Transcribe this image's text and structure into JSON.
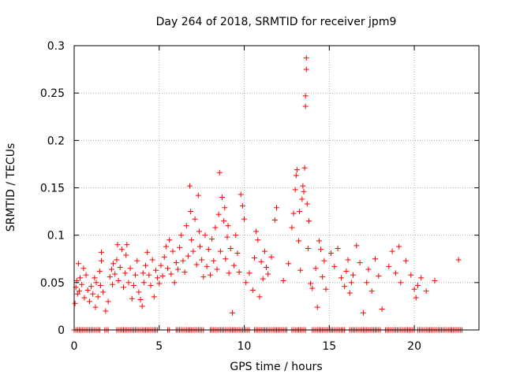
{
  "chart_data": {
    "type": "scatter",
    "title": "Day 264 of 2018, SRMTID for receiver jpm9",
    "xlabel": "GPS time / hours",
    "ylabel": "SRMTID / TECUs",
    "xlim": [
      0,
      23.8
    ],
    "ylim": [
      0,
      0.3
    ],
    "x_ticks": [
      0,
      5,
      10,
      15,
      20
    ],
    "y_ticks": [
      0,
      0.05,
      0.1,
      0.15,
      0.2,
      0.25,
      0.3
    ],
    "x_tick_labels": [
      "0",
      "5",
      "10",
      "15",
      "20"
    ],
    "y_tick_labels": [
      "0",
      "0.05",
      "0.1",
      "0.15",
      "0.2",
      "0.25",
      "0.3"
    ],
    "grid": true,
    "marker": "+",
    "series": [
      {
        "name": "SRMTID",
        "color": "#ff0000",
        "points": [
          [
            0.05,
            0.028
          ],
          [
            0.1,
            0.045
          ],
          [
            0.15,
            0.052
          ],
          [
            0.2,
            0.038
          ],
          [
            0.25,
            0.07
          ],
          [
            0.3,
            0.041
          ],
          [
            0.35,
            0.055
          ],
          [
            0.45,
            0.048
          ],
          [
            0.55,
            0.065
          ],
          [
            0.6,
            0.034
          ],
          [
            0.7,
            0.058
          ],
          [
            0.8,
            0.042
          ],
          [
            0.9,
            0.03
          ],
          [
            1.0,
            0.046
          ],
          [
            1.1,
            0.038
          ],
          [
            1.2,
            0.055
          ],
          [
            1.25,
            0.024
          ],
          [
            1.3,
            0.05
          ],
          [
            1.4,
            0.035
          ],
          [
            1.5,
            0.062
          ],
          [
            1.55,
            0.047
          ],
          [
            1.6,
            0.073
          ],
          [
            1.6,
            0.082
          ],
          [
            1.7,
            0.04
          ],
          [
            1.85,
            0.02
          ],
          [
            2.0,
            0.03
          ],
          [
            2.1,
            0.056
          ],
          [
            2.2,
            0.064
          ],
          [
            2.25,
            0.048
          ],
          [
            2.3,
            0.07
          ],
          [
            2.4,
            0.059
          ],
          [
            2.5,
            0.074
          ],
          [
            2.55,
            0.09
          ],
          [
            2.6,
            0.052
          ],
          [
            2.7,
            0.066
          ],
          [
            2.8,
            0.085
          ],
          [
            2.9,
            0.045
          ],
          [
            3.0,
            0.06
          ],
          [
            3.05,
            0.079
          ],
          [
            3.1,
            0.09
          ],
          [
            3.2,
            0.05
          ],
          [
            3.3,
            0.065
          ],
          [
            3.4,
            0.033
          ],
          [
            3.5,
            0.047
          ],
          [
            3.6,
            0.058
          ],
          [
            3.7,
            0.073
          ],
          [
            3.8,
            0.04
          ],
          [
            3.9,
            0.032
          ],
          [
            4.0,
            0.025
          ],
          [
            4.05,
            0.06
          ],
          [
            4.1,
            0.05
          ],
          [
            4.2,
            0.068
          ],
          [
            4.3,
            0.082
          ],
          [
            4.4,
            0.058
          ],
          [
            4.5,
            0.047
          ],
          [
            4.6,
            0.074
          ],
          [
            4.7,
            0.035
          ],
          [
            4.8,
            0.063
          ],
          [
            4.9,
            0.055
          ],
          [
            5.0,
            0.049
          ],
          [
            5.1,
            0.068
          ],
          [
            5.2,
            0.057
          ],
          [
            5.3,
            0.077
          ],
          [
            5.4,
            0.088
          ],
          [
            5.5,
            0.065
          ],
          [
            5.6,
            0.095
          ],
          [
            5.7,
            0.059
          ],
          [
            5.8,
            0.083
          ],
          [
            5.9,
            0.05
          ],
          [
            6.0,
            0.071
          ],
          [
            6.1,
            0.064
          ],
          [
            6.2,
            0.087
          ],
          [
            6.3,
            0.1
          ],
          [
            6.4,
            0.073
          ],
          [
            6.5,
            0.061
          ],
          [
            6.6,
            0.11
          ],
          [
            6.7,
            0.078
          ],
          [
            6.8,
            0.152
          ],
          [
            6.85,
            0.125
          ],
          [
            6.9,
            0.095
          ],
          [
            7.0,
            0.083
          ],
          [
            7.1,
            0.117
          ],
          [
            7.2,
            0.069
          ],
          [
            7.3,
            0.142
          ],
          [
            7.35,
            0.104
          ],
          [
            7.4,
            0.088
          ],
          [
            7.5,
            0.074
          ],
          [
            7.6,
            0.056
          ],
          [
            7.7,
            0.1
          ],
          [
            7.8,
            0.067
          ],
          [
            7.9,
            0.085
          ],
          [
            8.0,
            0.058
          ],
          [
            8.1,
            0.096
          ],
          [
            8.2,
            0.073
          ],
          [
            8.3,
            0.108
          ],
          [
            8.4,
            0.064
          ],
          [
            8.5,
            0.122
          ],
          [
            8.55,
            0.166
          ],
          [
            8.6,
            0.083
          ],
          [
            8.7,
            0.14
          ],
          [
            8.8,
            0.115
          ],
          [
            8.85,
            0.129
          ],
          [
            8.9,
            0.075
          ],
          [
            9.0,
            0.098
          ],
          [
            9.05,
            0.11
          ],
          [
            9.1,
            0.06
          ],
          [
            9.2,
            0.086
          ],
          [
            9.3,
            0.018
          ],
          [
            9.4,
            0.068
          ],
          [
            9.5,
            0.1
          ],
          [
            9.6,
            0.081
          ],
          [
            9.7,
            0.061
          ],
          [
            9.8,
            0.143
          ],
          [
            9.9,
            0.131
          ],
          [
            10.0,
            0.117
          ],
          [
            10.1,
            0.05
          ],
          [
            10.3,
            0.06
          ],
          [
            10.5,
            0.042
          ],
          [
            10.6,
            0.076
          ],
          [
            10.7,
            0.104
          ],
          [
            10.8,
            0.095
          ],
          [
            10.9,
            0.035
          ],
          [
            11.0,
            0.072
          ],
          [
            11.1,
            0.054
          ],
          [
            11.2,
            0.083
          ],
          [
            11.3,
            0.066
          ],
          [
            11.4,
            0.059
          ],
          [
            11.6,
            0.077
          ],
          [
            11.8,
            0.116
          ],
          [
            11.9,
            0.129
          ],
          [
            12.3,
            0.052
          ],
          [
            12.6,
            0.07
          ],
          [
            12.8,
            0.108
          ],
          [
            12.9,
            0.123
          ],
          [
            13.0,
            0.148
          ],
          [
            13.05,
            0.163
          ],
          [
            13.1,
            0.169
          ],
          [
            13.2,
            0.094
          ],
          [
            13.25,
            0.125
          ],
          [
            13.3,
            0.063
          ],
          [
            13.4,
            0.138
          ],
          [
            13.45,
            0.152
          ],
          [
            13.5,
            0.146
          ],
          [
            13.55,
            0.171
          ],
          [
            13.6,
            0.247
          ],
          [
            13.6,
            0.236
          ],
          [
            13.65,
            0.275
          ],
          [
            13.65,
            0.287
          ],
          [
            13.7,
            0.133
          ],
          [
            13.75,
            0.086
          ],
          [
            13.8,
            0.115
          ],
          [
            13.9,
            0.049
          ],
          [
            14.0,
            0.044
          ],
          [
            14.2,
            0.065
          ],
          [
            14.3,
            0.024
          ],
          [
            14.4,
            0.094
          ],
          [
            14.5,
            0.085
          ],
          [
            14.6,
            0.056
          ],
          [
            14.7,
            0.073
          ],
          [
            14.8,
            0.043
          ],
          [
            15.1,
            0.081
          ],
          [
            15.3,
            0.067
          ],
          [
            15.5,
            0.086
          ],
          [
            15.7,
            0.055
          ],
          [
            15.9,
            0.046
          ],
          [
            16.0,
            0.062
          ],
          [
            16.1,
            0.074
          ],
          [
            16.2,
            0.039
          ],
          [
            16.3,
            0.05
          ],
          [
            16.4,
            0.058
          ],
          [
            16.6,
            0.089
          ],
          [
            16.8,
            0.071
          ],
          [
            17.0,
            0.018
          ],
          [
            17.2,
            0.05
          ],
          [
            17.3,
            0.064
          ],
          [
            17.5,
            0.041
          ],
          [
            17.7,
            0.075
          ],
          [
            17.9,
            0.057
          ],
          [
            18.1,
            0.022
          ],
          [
            18.5,
            0.067
          ],
          [
            18.7,
            0.083
          ],
          [
            18.9,
            0.06
          ],
          [
            19.1,
            0.088
          ],
          [
            19.2,
            0.05
          ],
          [
            19.5,
            0.073
          ],
          [
            19.8,
            0.058
          ],
          [
            20.0,
            0.043
          ],
          [
            20.1,
            0.034
          ],
          [
            20.2,
            0.047
          ],
          [
            20.4,
            0.055
          ],
          [
            20.7,
            0.041
          ],
          [
            21.2,
            0.052
          ],
          [
            22.6,
            0.074
          ]
        ],
        "zero_points": [
          0.0,
          0.1,
          0.2,
          0.3,
          0.4,
          0.5,
          0.6,
          0.7,
          0.8,
          0.9,
          1.0,
          1.1,
          1.2,
          1.3,
          1.4,
          1.5,
          1.8,
          1.9,
          2.0,
          2.5,
          2.6,
          2.7,
          2.8,
          2.9,
          3.0,
          3.1,
          3.2,
          3.3,
          3.4,
          3.5,
          3.6,
          3.7,
          3.8,
          3.9,
          4.0,
          4.1,
          4.2,
          4.3,
          4.4,
          4.5,
          4.6,
          4.7,
          4.8,
          4.9,
          5.5,
          5.6,
          6.0,
          6.1,
          6.2,
          6.3,
          6.4,
          6.5,
          6.6,
          6.7,
          6.8,
          6.9,
          7.0,
          7.1,
          7.2,
          7.3,
          7.4,
          7.5,
          7.6,
          8.0,
          8.1,
          8.2,
          8.3,
          8.4,
          8.5,
          8.6,
          8.7,
          8.8,
          8.9,
          9.0,
          9.1,
          9.2,
          9.3,
          9.4,
          9.5,
          9.6,
          9.7,
          9.8,
          9.9,
          10.0,
          10.1,
          10.2,
          10.3,
          10.6,
          10.7,
          10.8,
          10.9,
          11.0,
          11.1,
          11.2,
          11.3,
          11.4,
          11.5,
          11.6,
          11.7,
          11.8,
          11.9,
          12.0,
          12.1,
          12.2,
          12.3,
          12.4,
          12.5,
          12.8,
          12.9,
          13.0,
          13.1,
          13.2,
          13.3,
          13.4,
          13.5,
          13.6,
          14.0,
          14.1,
          14.2,
          14.3,
          14.4,
          14.5,
          14.6,
          14.7,
          14.8,
          14.9,
          15.0,
          15.1,
          15.2,
          15.3,
          15.4,
          15.5,
          15.6,
          15.7,
          15.8,
          15.9,
          16.2,
          16.3,
          16.4,
          16.5,
          16.6,
          16.7,
          16.8,
          16.9,
          17.0,
          17.1,
          17.2,
          17.3,
          17.4,
          17.5,
          17.6,
          17.7,
          17.8,
          17.9,
          18.0,
          18.3,
          18.4,
          18.5,
          18.6,
          18.7,
          18.8,
          18.9,
          19.0,
          19.1,
          19.2,
          19.3,
          19.4,
          19.5,
          19.6,
          19.7,
          19.8,
          19.9,
          20.0,
          20.2,
          20.3,
          20.4,
          20.5,
          20.6,
          20.7,
          20.8,
          20.9,
          21.0,
          21.1,
          21.2,
          21.3,
          21.4,
          21.5,
          21.6,
          21.7,
          21.8,
          21.9,
          22.0,
          22.1,
          22.2,
          22.3,
          22.4,
          22.5,
          22.6,
          22.7,
          22.8
        ]
      }
    ]
  }
}
